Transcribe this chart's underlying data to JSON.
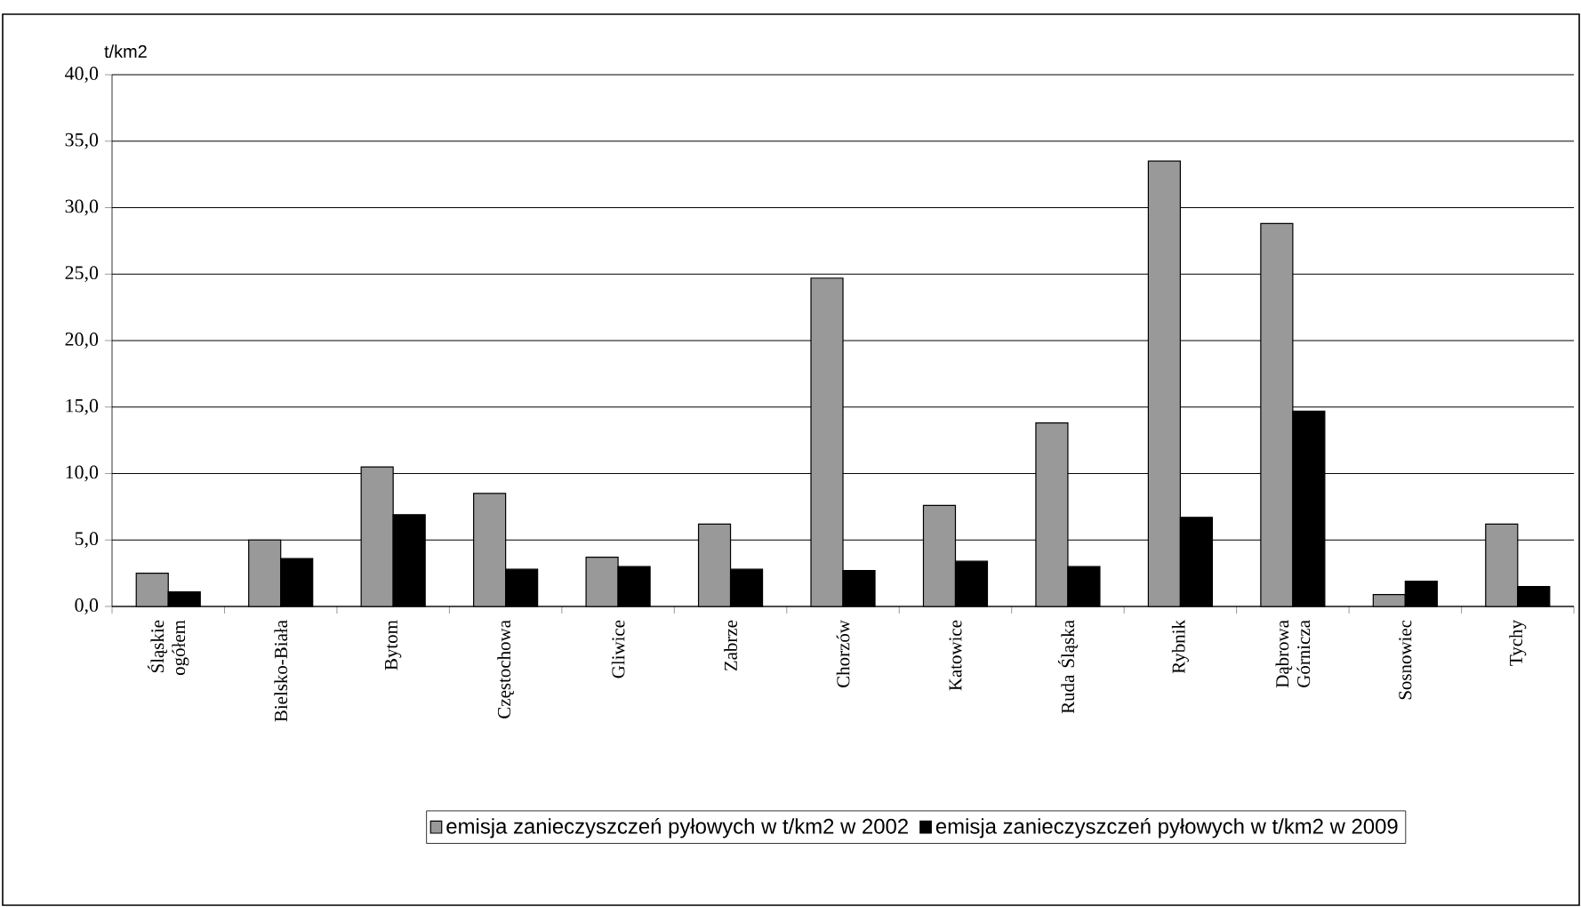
{
  "chart_data": {
    "type": "bar",
    "ylabel": "t/km2",
    "categories": [
      "Śląskie ogółem",
      "Bielsko-Biała",
      "Bytom",
      "Częstochowa",
      "Gliwice",
      "Zabrze",
      "Chorzów",
      "Katowice",
      "Ruda Śląska",
      "Rybnik",
      "Dąbrowa Górnicza",
      "Sosnowiec",
      "Tychy"
    ],
    "series": [
      {
        "name": "emisja zanieczyszczeń pyłowych w t/km2 w 2002",
        "color": "#999999",
        "values": [
          2.5,
          5.0,
          10.5,
          8.5,
          3.7,
          6.2,
          24.7,
          7.6,
          13.8,
          33.5,
          28.8,
          0.9,
          6.2
        ]
      },
      {
        "name": "emisja zanieczyszczeń pyłowych w t/km2 w 2009",
        "color": "#000000",
        "values": [
          1.1,
          3.6,
          6.9,
          2.8,
          3.0,
          2.8,
          2.7,
          3.4,
          3.0,
          6.7,
          14.7,
          1.9,
          1.5
        ]
      }
    ],
    "ylim": [
      0,
      40
    ],
    "yticks": [
      {
        "value": 0,
        "label": "0,0"
      },
      {
        "value": 5,
        "label": "5,0"
      },
      {
        "value": 10,
        "label": "10,0"
      },
      {
        "value": 15,
        "label": "15,0"
      },
      {
        "value": 20,
        "label": "20,0"
      },
      {
        "value": 25,
        "label": "25,0"
      },
      {
        "value": 30,
        "label": "30,0"
      },
      {
        "value": 35,
        "label": "35,0"
      },
      {
        "value": 40,
        "label": "40,0"
      }
    ],
    "grid": "y",
    "legend": "bottom"
  }
}
